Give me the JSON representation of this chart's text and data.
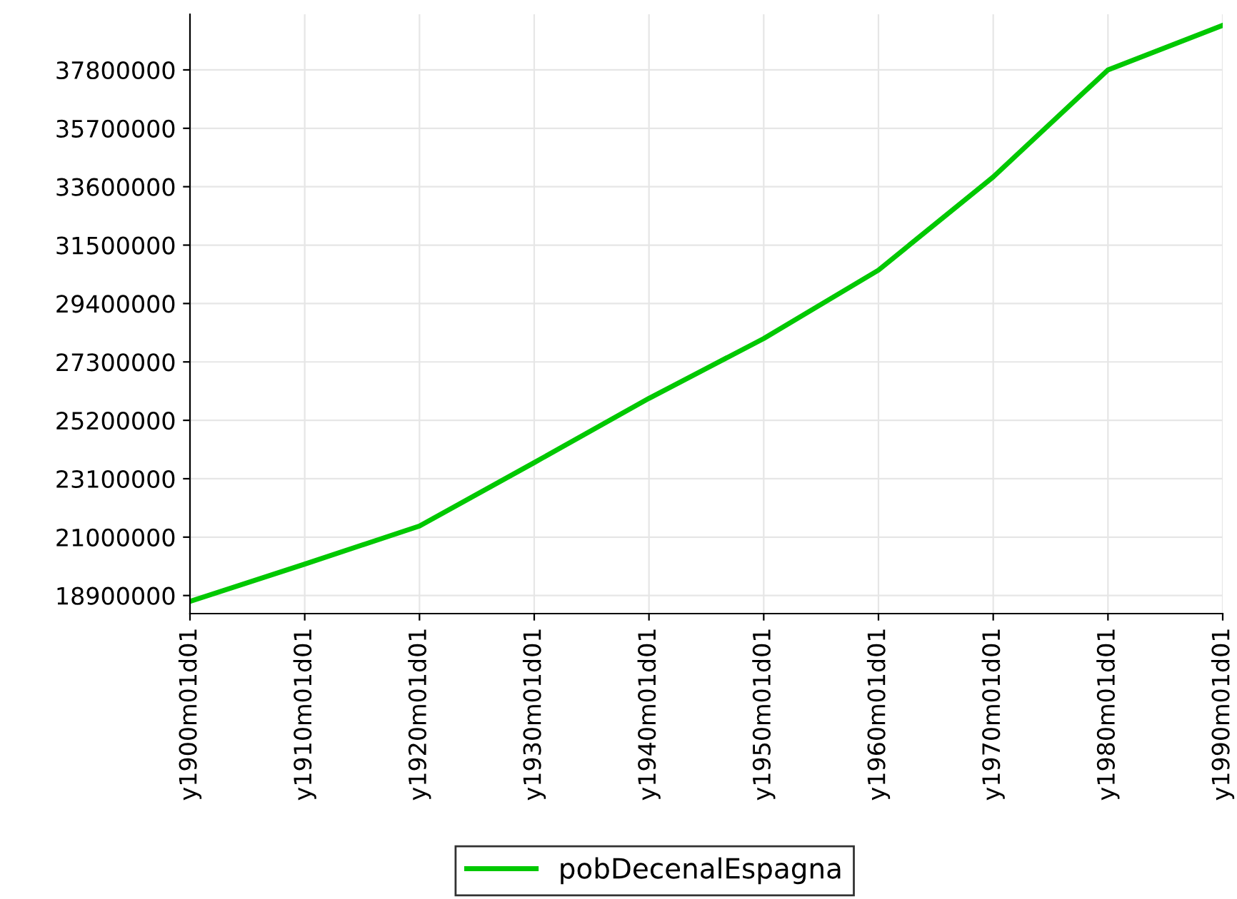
{
  "chart_data": {
    "type": "line",
    "categories": [
      "y1900m01d01",
      "y1910m01d01",
      "y1920m01d01",
      "y1930m01d01",
      "y1940m01d01",
      "y1950m01d01",
      "y1960m01d01",
      "y1970m01d01",
      "y1980m01d01",
      "y1990m01d01"
    ],
    "series": [
      {
        "name": "pobDecenalEspagna",
        "color": "#00c800",
        "values": [
          18690000,
          20030000,
          21400000,
          23680000,
          25990000,
          28140000,
          30600000,
          33950000,
          37800000,
          39400000
        ]
      }
    ],
    "ylim": [
      18250000,
      39800000
    ],
    "yticks": [
      18900000,
      21000000,
      23100000,
      25200000,
      27300000,
      29400000,
      31500000,
      33600000,
      35700000,
      37800000
    ],
    "grid": true,
    "legend": "bottom",
    "marker": "none",
    "line_style": "solid"
  }
}
